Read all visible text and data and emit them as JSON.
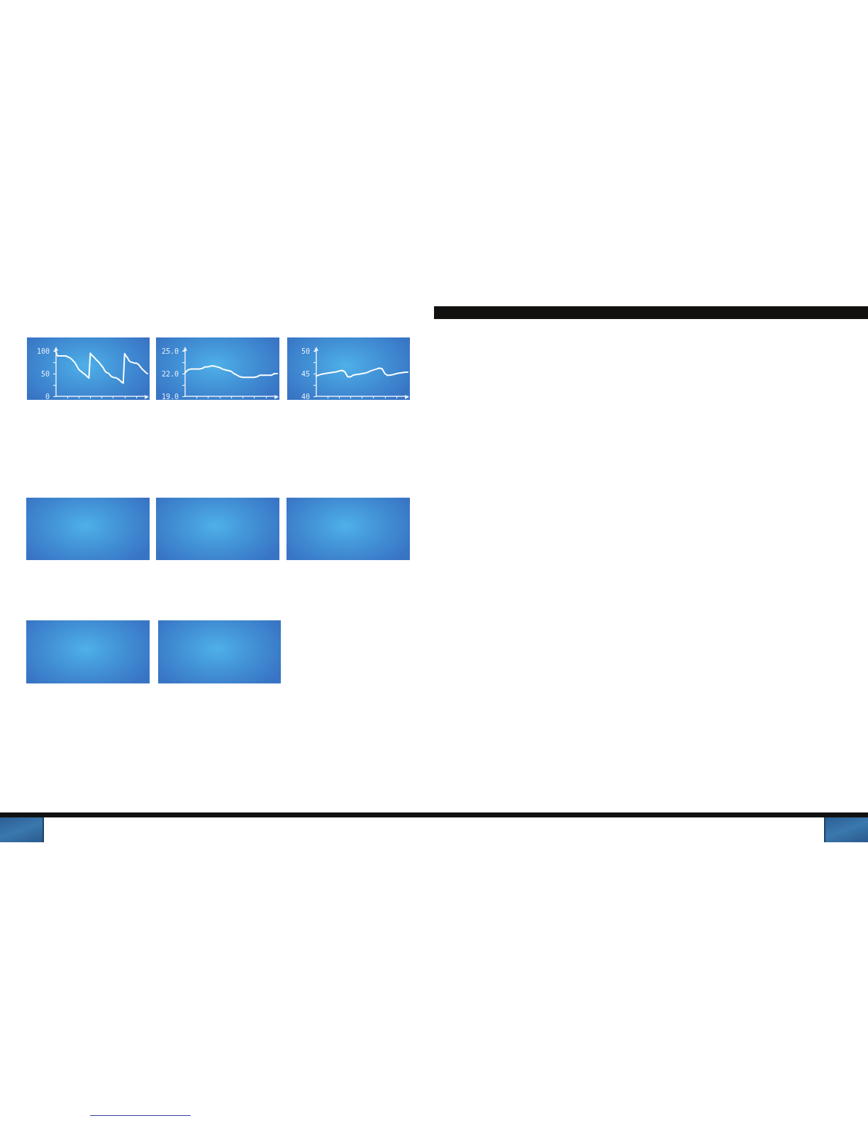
{
  "chart_data": [
    {
      "type": "line",
      "categories": [
        null,
        null,
        null,
        null,
        null,
        null,
        null,
        null,
        null,
        null,
        null,
        null,
        null,
        null,
        null,
        null,
        null,
        null,
        null,
        null,
        null,
        null,
        null,
        null,
        null,
        null,
        null,
        null,
        null,
        null,
        null,
        null,
        null,
        null,
        null,
        null,
        null,
        null,
        null,
        null,
        null,
        null,
        null,
        null,
        null,
        null,
        null,
        null,
        null,
        null,
        null,
        null,
        null,
        null,
        null,
        null,
        null,
        null,
        null,
        null,
        null,
        null,
        null,
        null,
        null
      ],
      "series": [
        {
          "color": "#ffffff",
          "values": [
            98,
            89,
            89,
            89,
            89,
            89,
            89,
            89,
            87,
            86,
            84,
            82,
            78,
            75,
            70,
            64,
            59,
            56,
            54,
            51,
            49,
            46,
            43,
            40,
            95,
            91,
            88,
            85,
            81,
            78,
            75,
            71,
            67,
            63,
            57,
            53,
            52,
            50,
            46,
            43,
            42,
            41,
            41,
            39,
            37,
            34,
            31,
            29,
            94,
            89,
            85,
            79,
            76,
            75,
            74,
            73,
            73,
            72,
            69,
            65,
            61,
            58,
            55,
            52,
            50
          ]
        }
      ],
      "ylim": [
        0,
        100
      ],
      "yticks": [
        0,
        {
          "value": 25,
          "label": null
        },
        50,
        {
          "value": 75,
          "label": null
        },
        100
      ],
      "tick_labels": "y",
      "grid": false,
      "line_style": "solid"
    },
    {
      "type": "line",
      "categories": [
        null,
        null,
        null,
        null,
        null,
        null,
        null,
        null,
        null,
        null,
        null,
        null,
        null,
        null,
        null,
        null,
        null,
        null,
        null,
        null,
        null,
        null,
        null,
        null,
        null,
        null,
        null,
        null,
        null,
        null,
        null,
        null,
        null
      ],
      "series": [
        {
          "color": "#ffffff",
          "values": [
            22.1,
            22.5,
            22.6,
            22.6,
            22.6,
            22.6,
            22.7,
            22.9,
            22.9,
            23.0,
            23.0,
            22.9,
            22.8,
            22.6,
            22.5,
            22.4,
            22.3,
            22.0,
            21.8,
            21.6,
            21.5,
            21.5,
            21.5,
            21.5,
            21.5,
            21.6,
            21.8,
            21.8,
            21.8,
            21.8,
            21.8,
            22.0,
            22.0
          ]
        }
      ],
      "ylim": [
        19,
        25
      ],
      "yticks": [
        {
          "value": 19,
          "label": "19.0"
        },
        {
          "value": 20.5,
          "label": null
        },
        {
          "value": 22,
          "label": "22.0"
        },
        {
          "value": 23.5,
          "label": null
        },
        {
          "value": 25,
          "label": "25.0"
        }
      ],
      "tick_labels": "y",
      "grid": false,
      "line_style": "solid"
    },
    {
      "type": "line",
      "categories": [
        null,
        null,
        null,
        null,
        null,
        null,
        null,
        null,
        null,
        null,
        null,
        null,
        null,
        null,
        null,
        null,
        null,
        null,
        null,
        null,
        null,
        null,
        null,
        null,
        null,
        null,
        null,
        null,
        null,
        null,
        null,
        null,
        null
      ],
      "series": [
        {
          "color": "#ffffff",
          "values": [
            44.5,
            44.7,
            44.9,
            45.0,
            45.1,
            45.2,
            45.3,
            45.4,
            45.6,
            45.7,
            45.4,
            44.3,
            44.3,
            44.7,
            44.8,
            44.9,
            45.0,
            45.1,
            45.3,
            45.6,
            45.8,
            46.0,
            46.2,
            46.1,
            45.0,
            44.6,
            44.7,
            44.8,
            45.0,
            45.1,
            45.2,
            45.3,
            45.3
          ]
        }
      ],
      "ylim": [
        40,
        50
      ],
      "yticks": [
        40,
        {
          "value": 42.5,
          "label": null
        },
        45,
        {
          "value": 47.5,
          "label": null
        },
        50
      ],
      "tick_labels": "y",
      "grid": false,
      "line_style": "solid"
    }
  ]
}
